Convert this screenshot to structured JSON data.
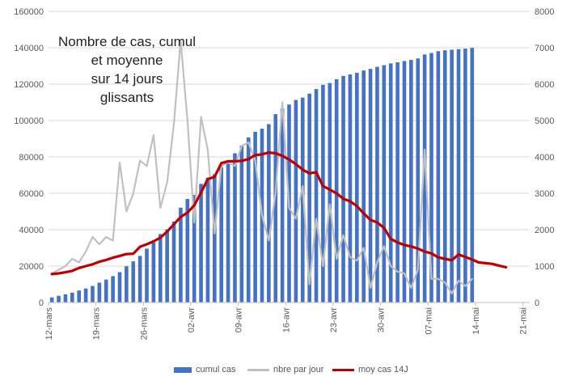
{
  "chart_data": {
    "type": "bar+line",
    "title_lines": [
      "Nombre de cas, cumul",
      "et moyenne",
      "sur 14 jours",
      "glissants"
    ],
    "y_left": {
      "min": 0,
      "max": 160000,
      "step": 20000,
      "ticks": [
        "0",
        "20000",
        "40000",
        "60000",
        "80000",
        "100000",
        "120000",
        "140000",
        "160000"
      ]
    },
    "y_right": {
      "min": 0,
      "max": 8000,
      "step": 1000,
      "ticks": [
        "0",
        "1000",
        "2000",
        "3000",
        "4000",
        "5000",
        "6000",
        "7000",
        "8000"
      ]
    },
    "x_tick_labels": [
      "12-mars",
      "19-mars",
      "26-mars",
      "02-avr",
      "09-avr",
      "16-avr",
      "23-avr",
      "30-avr",
      "07-mai",
      "14-mai",
      "21-mai"
    ],
    "x_domain_days": 71,
    "grid": true,
    "legend_position": "bottom",
    "colors": {
      "bars": "#4472c4",
      "daily": "#c0c0c0",
      "avg": "#c00000",
      "grid": "#d9d9d9",
      "axis_text": "#595959"
    },
    "series": [
      {
        "name": "cumul cas",
        "type": "bar",
        "axis": "left",
        "values": [
          2800,
          3700,
          4500,
          5400,
          6600,
          7700,
          9100,
          10900,
          12600,
          14500,
          16700,
          19900,
          22600,
          25600,
          29600,
          33000,
          37600,
          40200,
          44500,
          52100,
          56900,
          59100,
          65200,
          68600,
          70500,
          74400,
          78200,
          82000,
          86300,
          90700,
          93800,
          95500,
          98000,
          103500,
          106600,
          108800,
          111300,
          112600,
          114800,
          117300,
          119600,
          120600,
          122700,
          124500,
          125300,
          126200,
          127500,
          128400,
          129500,
          130400,
          131400,
          132000,
          132700,
          133300,
          134100,
          136300,
          137100,
          138100,
          138600,
          138900,
          139200,
          139500,
          139900
        ]
      },
      {
        "name": "nbre par jour",
        "type": "line",
        "axis": "right",
        "values": [
          800,
          900,
          1000,
          1200,
          1100,
          1400,
          1800,
          1600,
          1800,
          1700,
          3850,
          2500,
          3000,
          3900,
          3750,
          4600,
          2600,
          3300,
          4900,
          7200,
          5000,
          2200,
          5100,
          4200,
          1900,
          3750,
          3850,
          3750,
          4300,
          4400,
          3900,
          2400,
          1700,
          3000,
          5500,
          2600,
          2300,
          3200,
          500,
          2300,
          1000,
          2700,
          1200,
          1850,
          1250,
          1150,
          1500,
          400,
          1100,
          1550,
          1000,
          850,
          800,
          400,
          900,
          4200,
          650,
          650,
          550,
          250,
          600,
          450,
          650
        ]
      },
      {
        "name": "moy cas 14J",
        "type": "line",
        "axis": "right",
        "values": [
          780,
          800,
          830,
          870,
          950,
          1000,
          1050,
          1120,
          1170,
          1230,
          1280,
          1330,
          1340,
          1530,
          1600,
          1680,
          1780,
          1950,
          2150,
          2350,
          2470,
          2670,
          3020,
          3390,
          3450,
          3830,
          3880,
          3880,
          3890,
          3940,
          4050,
          4070,
          4120,
          4100,
          4030,
          3930,
          3800,
          3650,
          3550,
          3580,
          3200,
          3100,
          3000,
          2850,
          2780,
          2650,
          2450,
          2270,
          2200,
          2050,
          1750,
          1650,
          1580,
          1540,
          1480,
          1400,
          1350,
          1240,
          1200,
          1160,
          1320,
          1250,
          1180,
          1100,
          1080,
          1060,
          1010,
          970
        ]
      }
    ]
  }
}
